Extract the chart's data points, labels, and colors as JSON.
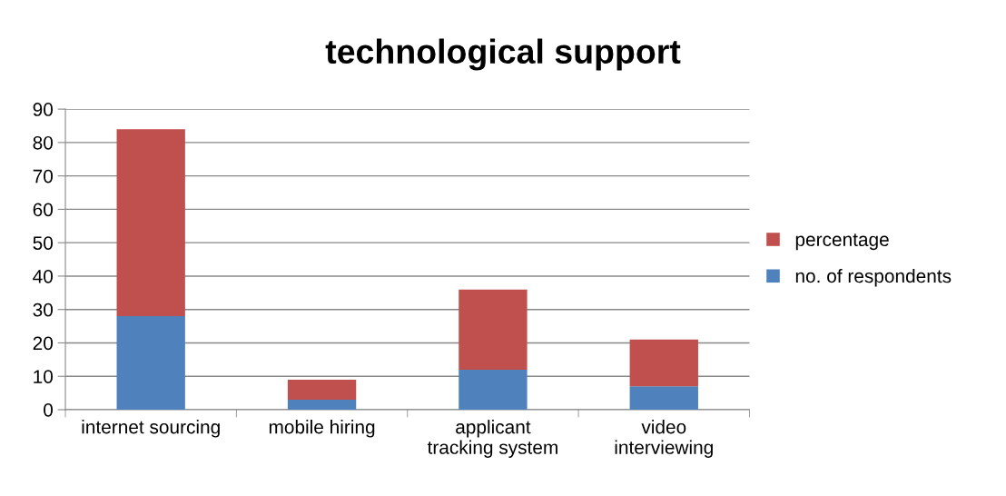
{
  "chart_data": {
    "type": "bar",
    "title": "technological support",
    "categories": [
      "internet sourcing",
      "mobile hiring",
      "applicant\ntracking system",
      "video\ninterviewing"
    ],
    "stacked": true,
    "series": [
      {
        "name": "no. of respondents",
        "color": "#4f81bd",
        "values": [
          28,
          3,
          12,
          7
        ]
      },
      {
        "name": "percentage",
        "color": "#c0504d",
        "values": [
          56,
          6,
          24,
          14
        ]
      }
    ],
    "ylim": [
      0,
      90
    ],
    "yticks": [
      0,
      10,
      20,
      30,
      40,
      50,
      60,
      70,
      80,
      90
    ],
    "grid": "y",
    "legend": "right"
  }
}
